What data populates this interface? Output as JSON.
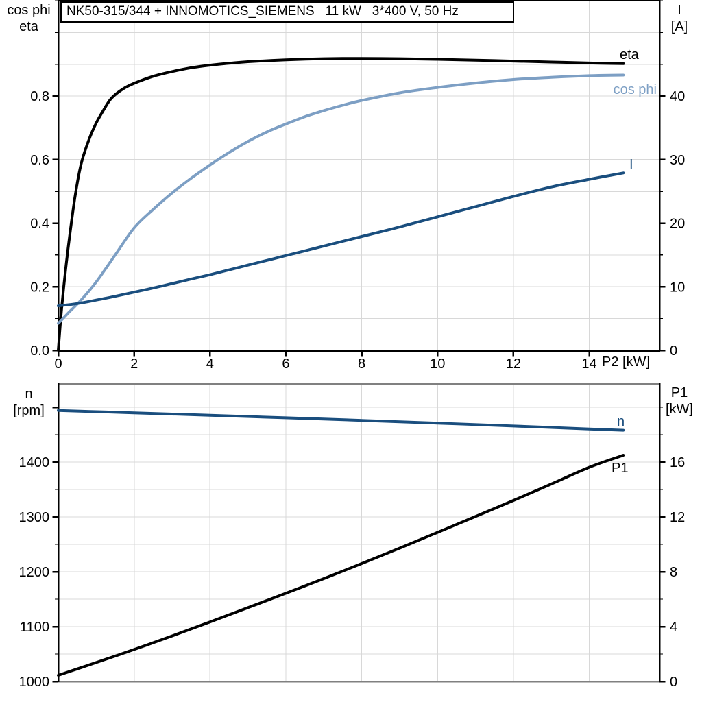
{
  "page": {
    "background": "#ffffff"
  },
  "title_box": {
    "text": "NK50-315/344 + INNOMOTICS_SIEMENS   11 kW   3*400 V, 50 Hz"
  },
  "colors": {
    "black_curve": "#000000",
    "light_blue": "#7d9fc4",
    "dark_blue": "#1a4e7e",
    "grid": "#d8d8d8",
    "axis": "#000000",
    "frame_gray": "#808080",
    "text": "#000000"
  },
  "chart_data": [
    {
      "id": "top",
      "type": "line",
      "title": "NK50-315/344 + INNOMOTICS_SIEMENS   11 kW   3*400 V, 50 Hz",
      "x_axis": {
        "title": "P2 [kW]",
        "range": [
          0,
          15.87
        ],
        "ticks": [
          0,
          2,
          4,
          6,
          8,
          10,
          12,
          14
        ],
        "show_labels": true,
        "grid": true
      },
      "left_axis": {
        "title_lines": [
          "cos phi",
          "eta"
        ],
        "range": [
          0,
          1.1
        ],
        "major_ticks": [
          0,
          0.2,
          0.4,
          0.6,
          0.8
        ],
        "tick_labels": [
          "0.0",
          "0.2",
          "0.4",
          "0.6",
          "0.8"
        ],
        "minor_step": 0.1
      },
      "right_axis": {
        "title_lines": [
          "I",
          "[A]"
        ],
        "range": [
          0,
          55
        ],
        "major_ticks": [
          0,
          10,
          20,
          30,
          40
        ],
        "tick_labels": [
          "0",
          "10",
          "20",
          "30",
          "40"
        ],
        "minor_step": 5
      },
      "series": [
        {
          "name": "eta",
          "axis": "left",
          "color": "#000000",
          "width": 4,
          "points": [
            [
              0,
              0
            ],
            [
              0.08,
              0.12
            ],
            [
              0.18,
              0.24
            ],
            [
              0.3,
              0.36
            ],
            [
              0.45,
              0.49
            ],
            [
              0.6,
              0.585
            ],
            [
              0.8,
              0.66
            ],
            [
              1.0,
              0.715
            ],
            [
              1.2,
              0.757
            ],
            [
              1.4,
              0.793
            ],
            [
              1.7,
              0.822
            ],
            [
              2.0,
              0.84
            ],
            [
              2.5,
              0.862
            ],
            [
              3.0,
              0.877
            ],
            [
              3.5,
              0.889
            ],
            [
              4.0,
              0.897
            ],
            [
              4.5,
              0.903
            ],
            [
              5.0,
              0.908
            ],
            [
              6.0,
              0.914
            ],
            [
              7.0,
              0.9175
            ],
            [
              8.0,
              0.9185
            ],
            [
              9.0,
              0.9175
            ],
            [
              10.0,
              0.9155
            ],
            [
              11.0,
              0.913
            ],
            [
              12.0,
              0.91
            ],
            [
              13.0,
              0.907
            ],
            [
              14.0,
              0.904
            ],
            [
              14.9,
              0.902
            ]
          ]
        },
        {
          "name": "cos phi",
          "axis": "left",
          "color": "#7d9fc4",
          "width": 4,
          "points": [
            [
              0,
              0.085
            ],
            [
              0.3,
              0.122
            ],
            [
              0.6,
              0.158
            ],
            [
              1.0,
              0.215
            ],
            [
              1.5,
              0.3
            ],
            [
              2.0,
              0.385
            ],
            [
              2.5,
              0.443
            ],
            [
              3.0,
              0.495
            ],
            [
              3.5,
              0.541
            ],
            [
              4.0,
              0.583
            ],
            [
              4.5,
              0.622
            ],
            [
              5.0,
              0.657
            ],
            [
              5.5,
              0.687
            ],
            [
              6.0,
              0.712
            ],
            [
              6.5,
              0.735
            ],
            [
              7.0,
              0.754
            ],
            [
              7.5,
              0.771
            ],
            [
              8.0,
              0.786
            ],
            [
              9.0,
              0.81
            ],
            [
              10.0,
              0.827
            ],
            [
              11.0,
              0.841
            ],
            [
              12.0,
              0.852
            ],
            [
              13.0,
              0.859
            ],
            [
              14.0,
              0.864
            ],
            [
              14.9,
              0.866
            ]
          ]
        },
        {
          "name": "I",
          "axis": "right",
          "color": "#1a4e7e",
          "width": 4,
          "points": [
            [
              0,
              7.0
            ],
            [
              0.5,
              7.35
            ],
            [
              1.0,
              7.9
            ],
            [
              1.5,
              8.5
            ],
            [
              2.0,
              9.15
            ],
            [
              2.5,
              9.8
            ],
            [
              3.0,
              10.5
            ],
            [
              3.5,
              11.2
            ],
            [
              4.0,
              11.9
            ],
            [
              4.5,
              12.65
            ],
            [
              5.0,
              13.4
            ],
            [
              6.0,
              14.9
            ],
            [
              7.0,
              16.4
            ],
            [
              8.0,
              17.9
            ],
            [
              9.0,
              19.4
            ],
            [
              10.0,
              21.0
            ],
            [
              11.0,
              22.6
            ],
            [
              12.0,
              24.2
            ],
            [
              13.0,
              25.7
            ],
            [
              14.0,
              26.9
            ],
            [
              14.9,
              27.9
            ]
          ]
        }
      ]
    },
    {
      "id": "bottom",
      "type": "line",
      "x_axis": {
        "title": "",
        "range": [
          0,
          15.87
        ],
        "ticks": [
          0,
          2,
          4,
          6,
          8,
          10,
          12,
          14
        ],
        "show_labels": false,
        "grid": true
      },
      "left_axis": {
        "title_lines": [
          "n",
          "[rpm]"
        ],
        "range": [
          1000,
          1542.5
        ],
        "major_ticks": [
          1000,
          1100,
          1200,
          1300,
          1400,
          1500
        ],
        "tick_labels": [
          "1000",
          "1100",
          "1200",
          "1300",
          "1400",
          ""
        ],
        "minor_step": 50
      },
      "right_axis": {
        "title_lines": [
          "P1",
          "[kW]"
        ],
        "range": [
          0,
          21.7
        ],
        "major_ticks": [
          0,
          4,
          8,
          12,
          16
        ],
        "tick_labels": [
          "0",
          "4",
          "8",
          "12",
          "16"
        ],
        "minor_step": 2
      },
      "series": [
        {
          "name": "n",
          "axis": "left",
          "color": "#1a4e7e",
          "width": 4,
          "points": [
            [
              0,
              1494
            ],
            [
              2,
              1489.8
            ],
            [
              4,
              1485.4
            ],
            [
              6,
              1480.8
            ],
            [
              8,
              1476
            ],
            [
              10,
              1471
            ],
            [
              12,
              1465.8
            ],
            [
              14,
              1460.4
            ],
            [
              14.9,
              1458
            ]
          ]
        },
        {
          "name": "P1",
          "axis": "right",
          "color": "#000000",
          "width": 4,
          "points": [
            [
              0,
              0.45
            ],
            [
              1,
              1.38
            ],
            [
              2,
              2.33
            ],
            [
              3,
              3.32
            ],
            [
              4,
              4.34
            ],
            [
              5,
              5.38
            ],
            [
              6,
              6.43
            ],
            [
              7,
              7.5
            ],
            [
              8,
              8.6
            ],
            [
              9,
              9.72
            ],
            [
              10,
              10.87
            ],
            [
              11,
              12.03
            ],
            [
              12,
              13.2
            ],
            [
              13,
              14.4
            ],
            [
              14,
              15.62
            ],
            [
              14.9,
              16.5
            ]
          ]
        }
      ]
    }
  ]
}
